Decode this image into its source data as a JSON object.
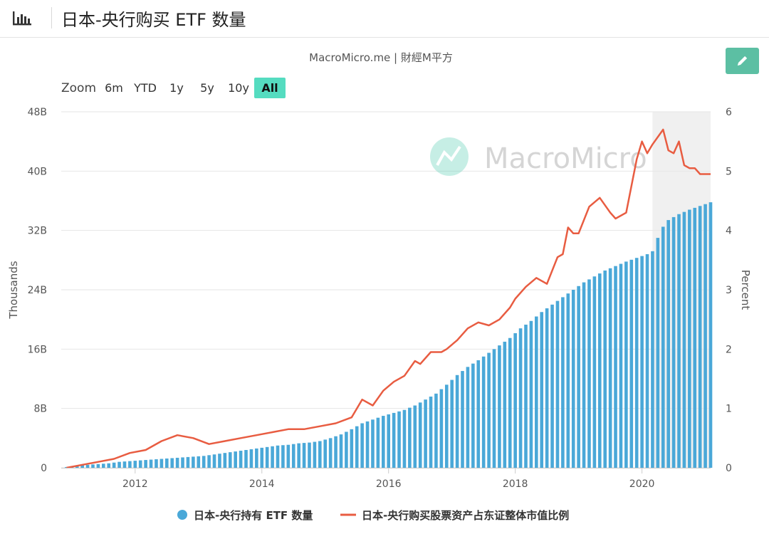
{
  "header": {
    "title": "日本-央行购买 ETF 数量",
    "icon": "bar-chart-icon"
  },
  "chart_data": {
    "type": "bar",
    "subtitle": "MacroMicro.me | 財經M平方",
    "watermark": "MacroMicro",
    "zoom": {
      "label": "Zoom",
      "options": [
        "6m",
        "YTD",
        "1y",
        "5y",
        "10y",
        "All"
      ],
      "selected": "All"
    },
    "x_axis": {
      "range": [
        "2010-11",
        "2021-02"
      ],
      "ticks": [
        "2012",
        "2014",
        "2016",
        "2018",
        "2020"
      ]
    },
    "y_axis_left": {
      "label": "Thousands",
      "range": [
        0,
        48
      ],
      "ticks": [
        "0",
        "8B",
        "16B",
        "24B",
        "32B",
        "40B",
        "48B"
      ],
      "tick_values": [
        0,
        8,
        16,
        24,
        32,
        40,
        48
      ]
    },
    "y_axis_right": {
      "label": "Percent",
      "range": [
        0,
        6
      ],
      "ticks": [
        "0",
        "1",
        "2",
        "3",
        "4",
        "5",
        "6"
      ],
      "tick_values": [
        0,
        1,
        2,
        3,
        4,
        5,
        6
      ]
    },
    "grid": true,
    "highlight_range": [
      "2020-03",
      "2021-03"
    ],
    "legend_position": "bottom-center",
    "series": [
      {
        "name": "日本-央行持有 ETF 数量",
        "type": "bar",
        "axis": "left",
        "color": "#4aa8d8",
        "step": "monthly",
        "x": [
          "2010-12",
          "2011-02",
          "2011-04",
          "2011-06",
          "2011-08",
          "2011-10",
          "2011-12",
          "2012-02",
          "2012-04",
          "2012-06",
          "2012-08",
          "2012-10",
          "2012-12",
          "2013-02",
          "2013-04",
          "2013-06",
          "2013-08",
          "2013-10",
          "2013-12",
          "2014-02",
          "2014-04",
          "2014-06",
          "2014-08",
          "2014-10",
          "2014-12",
          "2015-02",
          "2015-04",
          "2015-06",
          "2015-08",
          "2015-10",
          "2015-12",
          "2016-02",
          "2016-04",
          "2016-06",
          "2016-08",
          "2016-10",
          "2016-12",
          "2017-02",
          "2017-04",
          "2017-06",
          "2017-08",
          "2017-10",
          "2017-12",
          "2018-02",
          "2018-04",
          "2018-06",
          "2018-08",
          "2018-10",
          "2018-12",
          "2019-02",
          "2019-04",
          "2019-06",
          "2019-08",
          "2019-10",
          "2019-12",
          "2020-02",
          "2020-03",
          "2020-04",
          "2020-05",
          "2020-06",
          "2020-08",
          "2020-10",
          "2020-12",
          "2021-02"
        ],
        "values": [
          0.1,
          0.3,
          0.4,
          0.5,
          0.6,
          0.8,
          0.9,
          1.0,
          1.1,
          1.2,
          1.3,
          1.4,
          1.5,
          1.6,
          1.8,
          2.0,
          2.2,
          2.4,
          2.6,
          2.8,
          3.0,
          3.1,
          3.3,
          3.4,
          3.6,
          4.0,
          4.5,
          5.2,
          6.0,
          6.5,
          7.0,
          7.4,
          7.8,
          8.4,
          9.2,
          10.0,
          11.2,
          12.5,
          13.6,
          14.5,
          15.5,
          16.5,
          17.5,
          18.8,
          19.8,
          21.0,
          22.0,
          23.0,
          24.0,
          25.0,
          25.8,
          26.6,
          27.2,
          27.8,
          28.3,
          28.8,
          29.2,
          31.0,
          32.5,
          33.4,
          34.2,
          34.8,
          35.3,
          35.8
        ]
      },
      {
        "name": "日本-央行购买股票资产占东证整体市值比例",
        "type": "line",
        "axis": "right",
        "color": "#e85c41",
        "x": [
          "2010-12",
          "2011-03",
          "2011-06",
          "2011-09",
          "2011-12",
          "2012-03",
          "2012-06",
          "2012-09",
          "2012-12",
          "2013-03",
          "2013-06",
          "2013-09",
          "2013-12",
          "2014-03",
          "2014-06",
          "2014-09",
          "2014-12",
          "2015-03",
          "2015-06",
          "2015-08",
          "2015-10",
          "2015-12",
          "2016-02",
          "2016-04",
          "2016-06",
          "2016-07",
          "2016-09",
          "2016-11",
          "2016-12",
          "2017-02",
          "2017-04",
          "2017-06",
          "2017-08",
          "2017-10",
          "2017-12",
          "2018-01",
          "2018-03",
          "2018-05",
          "2018-07",
          "2018-09",
          "2018-10",
          "2018-11",
          "2018-12",
          "2019-01",
          "2019-03",
          "2019-05",
          "2019-07",
          "2019-08",
          "2019-10",
          "2019-12",
          "2020-01",
          "2020-02",
          "2020-03",
          "2020-05",
          "2020-06",
          "2020-07",
          "2020-08",
          "2020-09",
          "2020-10",
          "2020-11",
          "2020-12",
          "2021-01",
          "2021-02"
        ],
        "values": [
          0.0,
          0.05,
          0.1,
          0.15,
          0.25,
          0.3,
          0.45,
          0.55,
          0.5,
          0.4,
          0.45,
          0.5,
          0.55,
          0.6,
          0.65,
          0.65,
          0.7,
          0.75,
          0.85,
          1.15,
          1.05,
          1.3,
          1.45,
          1.55,
          1.8,
          1.75,
          1.95,
          1.95,
          2.0,
          2.15,
          2.35,
          2.45,
          2.4,
          2.5,
          2.7,
          2.85,
          3.05,
          3.2,
          3.1,
          3.55,
          3.6,
          4.05,
          3.95,
          3.95,
          4.4,
          4.55,
          4.3,
          4.2,
          4.3,
          5.2,
          5.5,
          5.3,
          5.45,
          5.7,
          5.35,
          5.3,
          5.5,
          5.1,
          5.05,
          5.05,
          4.95,
          4.95,
          4.95
        ]
      }
    ]
  },
  "edit_button": {
    "icon": "pencil-icon",
    "color": "#5cbfa3"
  }
}
